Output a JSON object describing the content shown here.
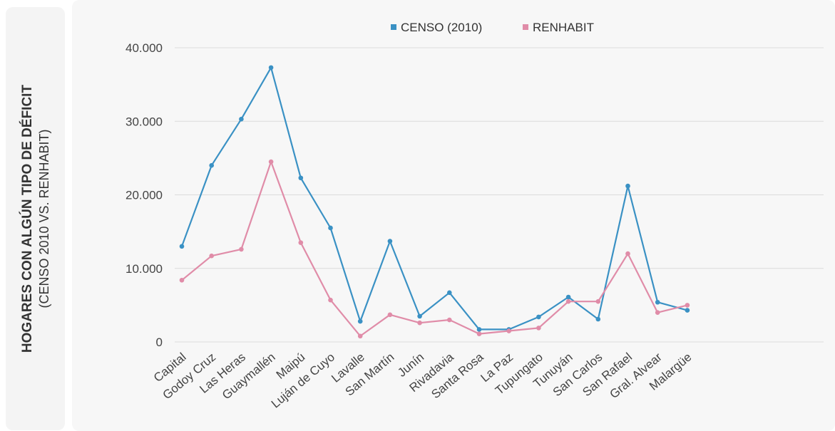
{
  "chart_data": {
    "type": "line",
    "ylabel": "HOGARES CON ALGÚN TIPO DE DÉFICIT",
    "ylabel_sub": "(CENSO 2010 VS. RENHABIT)",
    "ylim": [
      0,
      40000
    ],
    "yticks": [
      0,
      10000,
      20000,
      30000,
      40000
    ],
    "ytick_labels": [
      "0",
      "10.000",
      "20.000",
      "30.000",
      "40.000"
    ],
    "grid": true,
    "legend": "top-center",
    "categories": [
      "Capital",
      "Godoy Cruz",
      "Las Heras",
      "Guaymallén",
      "Maipú",
      "Luján de Cuyo",
      "Lavalle",
      "San Martín",
      "Junín",
      "Rivadavia",
      "Santa Rosa",
      "La Paz",
      "Tupungato",
      "Tunuyán",
      "San Carlos",
      "San Rafael",
      "Gral. Alvear",
      "Malargüe"
    ],
    "series": [
      {
        "name": "CENSO (2010)",
        "color": "#3a91c4",
        "values": [
          13000,
          24000,
          30300,
          37300,
          22300,
          15500,
          2800,
          13700,
          3500,
          6700,
          1700,
          1700,
          3400,
          6100,
          3100,
          21200,
          5400,
          4300
        ]
      },
      {
        "name": "RENHABIT",
        "color": "#e08ca8",
        "values": [
          8400,
          11700,
          12600,
          24500,
          13500,
          5700,
          800,
          3700,
          2600,
          3000,
          1100,
          1500,
          1900,
          5500,
          5500,
          12000,
          4000,
          5000
        ]
      }
    ]
  }
}
